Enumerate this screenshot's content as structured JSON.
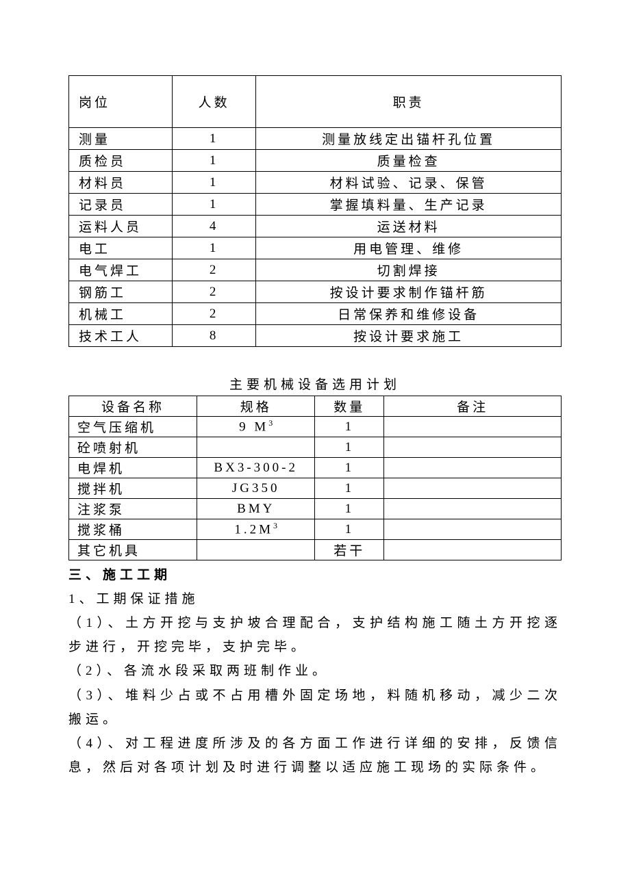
{
  "table1": {
    "headers": [
      "岗位",
      "人数",
      "职责"
    ],
    "rows": [
      [
        "测量",
        "1",
        "测量放线定出锚杆孔位置"
      ],
      [
        "质检员",
        "1",
        "质量检查"
      ],
      [
        "材料员",
        "1",
        "材料试验、记录、保管"
      ],
      [
        "记录员",
        "1",
        "掌握填料量、生产记录"
      ],
      [
        "运料人员",
        "4",
        "运送材料"
      ],
      [
        "电工",
        "1",
        "用电管理、维修"
      ],
      [
        "电气焊工",
        "2",
        "切割焊接"
      ],
      [
        "钢筋工",
        "2",
        "按设计要求制作锚杆筋"
      ],
      [
        "机械工",
        "2",
        "日常保养和维修设备"
      ],
      [
        "技术工人",
        "8",
        "按设计要求施工"
      ]
    ]
  },
  "table2": {
    "title": "主要机械设备选用计划",
    "headers": [
      "设备名称",
      "规格",
      "数量",
      "备注"
    ],
    "rows": [
      [
        "空气压缩机",
        "9 M³",
        "1",
        ""
      ],
      [
        "砼喷射机",
        "",
        "1",
        ""
      ],
      [
        "电焊机",
        "BX3-300-2",
        "1",
        ""
      ],
      [
        "搅拌机",
        "JG350",
        "1",
        ""
      ],
      [
        "注浆泵",
        "BMY",
        "1",
        ""
      ],
      [
        "搅浆桶",
        "1.2M³",
        "1",
        ""
      ],
      [
        "其它机具",
        "",
        "若干",
        ""
      ]
    ]
  },
  "section3": {
    "heading": "三、施工工期",
    "sub1": "1、工期保证措施",
    "p1": "（1）、土方开挖与支护坡合理配合，支护结构施工随土方开挖逐步进行，开挖完毕，支护完毕。",
    "p2": "（2）、各流水段采取两班制作业。",
    "p3": "（3）、堆料少占或不占用槽外固定场地，料随机移动，减少二次搬运。",
    "p4": "（4）、对工程进度所涉及的各方面工作进行详细的安排，反馈信息，然后对各项计划及时进行调整以适应施工现场的实际条件。"
  }
}
